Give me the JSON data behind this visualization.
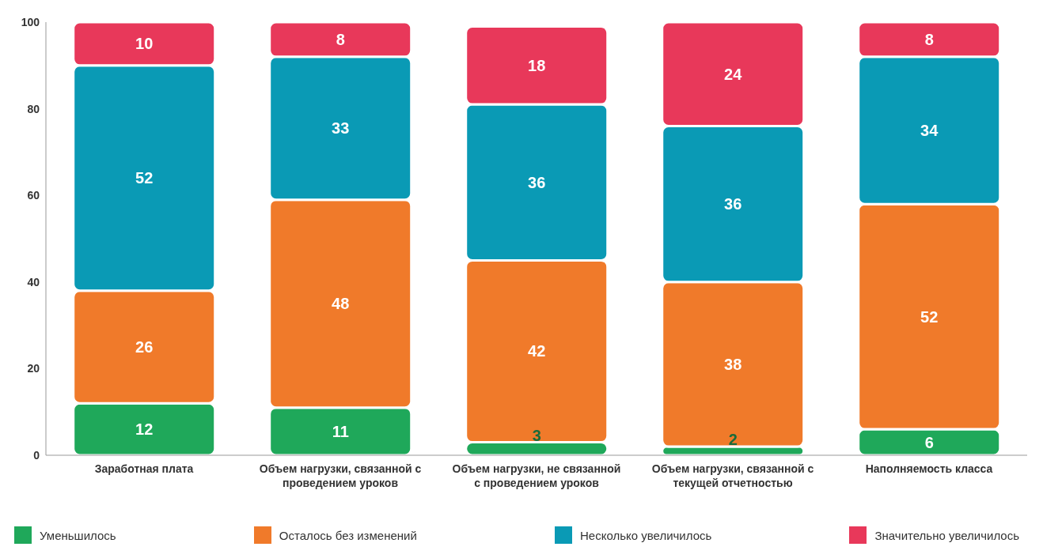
{
  "chart_data": {
    "type": "bar",
    "stacked": true,
    "data_labels": true,
    "grid": false,
    "legend": "bottom",
    "categories": [
      "Заработная плата",
      "Объем нагрузки, связанной с проведением уроков",
      "Объем нагрузки, не связанной с проведением уроков",
      "Объем нагрузки, связанной с текущей отчетностью",
      "Наполняемость класса"
    ],
    "ylim": [
      0,
      100
    ],
    "yticks": [
      0,
      20,
      40,
      60,
      80,
      100
    ],
    "series": [
      {
        "name": "Уменьшилось",
        "color": "#1fa85a",
        "values": [
          12,
          11,
          3,
          2,
          6
        ]
      },
      {
        "name": "Осталось без изменений",
        "color": "#f07a2a",
        "values": [
          26,
          48,
          42,
          38,
          52
        ]
      },
      {
        "name": "Несколько увеличилось",
        "color": "#0a9ab5",
        "values": [
          52,
          33,
          36,
          36,
          34
        ]
      },
      {
        "name": "Значительно увеличилось",
        "color": "#e8385a",
        "values": [
          10,
          8,
          18,
          24,
          8
        ]
      }
    ]
  }
}
